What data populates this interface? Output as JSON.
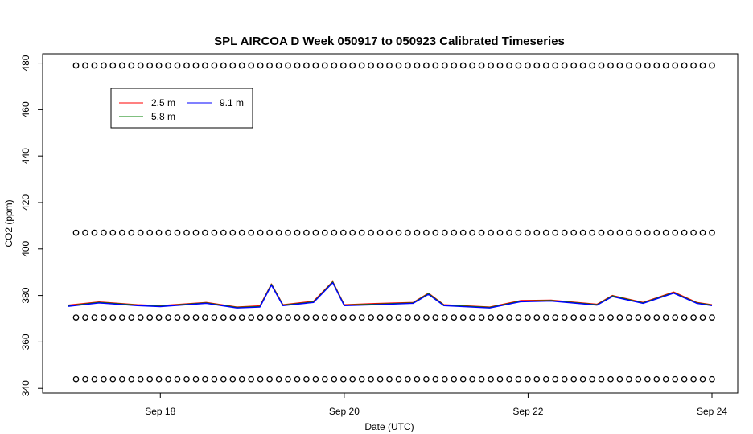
{
  "chart_data": {
    "type": "line",
    "title": "SPL AIRCOA D  Week 050917 to 050923  Calibrated Timeseries",
    "xlabel": "Date (UTC)",
    "ylabel": "CO2 (ppm)",
    "xlim": [
      "2005-09-17T00:00",
      "2005-09-24T00:00"
    ],
    "ylim": [
      338,
      484
    ],
    "x_ticks": [
      {
        "date": "2005-09-18",
        "label": "Sep 18"
      },
      {
        "date": "2005-09-20",
        "label": "Sep 20"
      },
      {
        "date": "2005-09-22",
        "label": "Sep 22"
      },
      {
        "date": "2005-09-24",
        "label": "Sep 24"
      }
    ],
    "y_ticks": [
      340,
      360,
      380,
      400,
      420,
      440,
      460,
      480
    ],
    "grid": false,
    "legend_position": "top-left",
    "legend": [
      {
        "name": "2.5 m",
        "color": "#ff0000"
      },
      {
        "name": "5.8 m",
        "color": "#008000"
      },
      {
        "name": "9.1 m",
        "color": "#0000ff"
      }
    ],
    "series": [
      {
        "name": "2.5 m",
        "color": "#ff0000",
        "points": [
          [
            "2005-09-17T00:00",
            375.8
          ],
          [
            "2005-09-17T08:00",
            377.2
          ],
          [
            "2005-09-17T18:00",
            376.0
          ],
          [
            "2005-09-18T00:00",
            375.6
          ],
          [
            "2005-09-18T12:00",
            377.0
          ],
          [
            "2005-09-18T20:00",
            375.0
          ],
          [
            "2005-09-19T02:00",
            375.5
          ],
          [
            "2005-09-19T05:00",
            385.0
          ],
          [
            "2005-09-19T08:00",
            376.0
          ],
          [
            "2005-09-19T16:00",
            377.5
          ],
          [
            "2005-09-19T21:00",
            386.0
          ],
          [
            "2005-09-20T00:00",
            376.0
          ],
          [
            "2005-09-20T08:00",
            376.5
          ],
          [
            "2005-09-20T18:00",
            377.0
          ],
          [
            "2005-09-20T22:00",
            381.0
          ],
          [
            "2005-09-21T02:00",
            376.0
          ],
          [
            "2005-09-21T14:00",
            375.0
          ],
          [
            "2005-09-21T22:00",
            377.8
          ],
          [
            "2005-09-22T06:00",
            378.0
          ],
          [
            "2005-09-22T18:00",
            376.2
          ],
          [
            "2005-09-22T22:00",
            380.0
          ],
          [
            "2005-09-23T06:00",
            377.0
          ],
          [
            "2005-09-23T14:00",
            381.5
          ],
          [
            "2005-09-23T20:00",
            377.0
          ],
          [
            "2005-09-24T00:00",
            376.0
          ]
        ]
      },
      {
        "name": "5.8 m",
        "color": "#008000",
        "points": [
          [
            "2005-09-17T00:00",
            375.5
          ],
          [
            "2005-09-17T08:00",
            377.0
          ],
          [
            "2005-09-17T18:00",
            375.8
          ],
          [
            "2005-09-18T00:00",
            375.4
          ],
          [
            "2005-09-18T12:00",
            376.8
          ],
          [
            "2005-09-18T20:00",
            374.8
          ],
          [
            "2005-09-19T02:00",
            375.2
          ],
          [
            "2005-09-19T05:00",
            384.8
          ],
          [
            "2005-09-19T08:00",
            375.8
          ],
          [
            "2005-09-19T16:00",
            377.2
          ],
          [
            "2005-09-19T21:00",
            385.8
          ],
          [
            "2005-09-20T00:00",
            375.8
          ],
          [
            "2005-09-20T08:00",
            376.2
          ],
          [
            "2005-09-20T18:00",
            376.8
          ],
          [
            "2005-09-20T22:00",
            380.8
          ],
          [
            "2005-09-21T02:00",
            375.8
          ],
          [
            "2005-09-21T14:00",
            374.8
          ],
          [
            "2005-09-21T22:00",
            377.5
          ],
          [
            "2005-09-22T06:00",
            377.8
          ],
          [
            "2005-09-22T18:00",
            376.0
          ],
          [
            "2005-09-22T22:00",
            379.8
          ],
          [
            "2005-09-23T06:00",
            376.8
          ],
          [
            "2005-09-23T14:00",
            381.2
          ],
          [
            "2005-09-23T20:00",
            376.8
          ],
          [
            "2005-09-24T00:00",
            375.8
          ]
        ]
      },
      {
        "name": "9.1 m",
        "color": "#0000ff",
        "points": [
          [
            "2005-09-17T00:00",
            375.3
          ],
          [
            "2005-09-17T08:00",
            376.8
          ],
          [
            "2005-09-17T18:00",
            375.6
          ],
          [
            "2005-09-18T00:00",
            375.2
          ],
          [
            "2005-09-18T12:00",
            376.6
          ],
          [
            "2005-09-18T20:00",
            374.6
          ],
          [
            "2005-09-19T02:00",
            375.0
          ],
          [
            "2005-09-19T05:00",
            384.5
          ],
          [
            "2005-09-19T08:00",
            375.6
          ],
          [
            "2005-09-19T16:00",
            377.0
          ],
          [
            "2005-09-19T21:00",
            385.5
          ],
          [
            "2005-09-20T00:00",
            375.6
          ],
          [
            "2005-09-20T08:00",
            376.0
          ],
          [
            "2005-09-20T18:00",
            376.6
          ],
          [
            "2005-09-20T22:00",
            380.5
          ],
          [
            "2005-09-21T02:00",
            375.6
          ],
          [
            "2005-09-21T14:00",
            374.6
          ],
          [
            "2005-09-21T22:00",
            377.3
          ],
          [
            "2005-09-22T06:00",
            377.6
          ],
          [
            "2005-09-22T18:00",
            375.8
          ],
          [
            "2005-09-22T22:00",
            379.5
          ],
          [
            "2005-09-23T06:00",
            376.6
          ],
          [
            "2005-09-23T14:00",
            381.0
          ],
          [
            "2005-09-23T20:00",
            376.6
          ],
          [
            "2005-09-24T00:00",
            375.6
          ]
        ]
      }
    ],
    "reference_markers": {
      "symbol": "o",
      "rows_ppm": [
        479,
        407,
        370.5,
        344
      ],
      "start": "2005-09-17T02:00",
      "end": "2005-09-24T00:00",
      "count_per_row": 70
    }
  }
}
